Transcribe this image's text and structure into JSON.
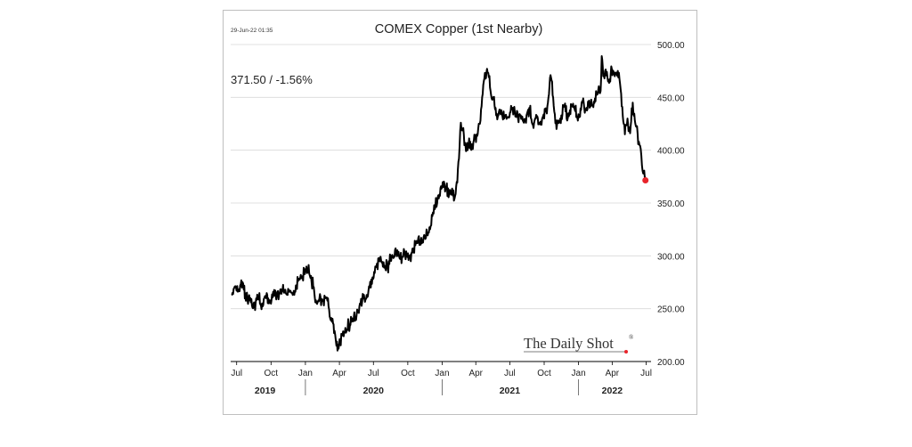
{
  "timestamp": "29-Jun-22 01:35",
  "title": "COMEX Copper (1st Nearby)",
  "last_value_label": "371.50  /  -1.56%",
  "watermark": "The Daily Shot",
  "watermark_mark": "®",
  "colors": {
    "line": "#000000",
    "last_point": "#e8232a",
    "grid": "#d9d9d9",
    "axis": "#000000"
  },
  "chart_data": {
    "type": "line",
    "title": "COMEX Copper (1st Nearby)",
    "xlabel": "",
    "ylabel": "",
    "ylim": [
      200,
      500
    ],
    "yticks": [
      "200.00",
      "250.00",
      "300.00",
      "350.00",
      "400.00",
      "450.00",
      "500.00"
    ],
    "ytick_values": [
      200,
      250,
      300,
      350,
      400,
      450,
      500
    ],
    "grid": true,
    "month_ticks": [
      {
        "label": "Jul",
        "date": "2019-07-01"
      },
      {
        "label": "Oct",
        "date": "2019-10-01"
      },
      {
        "label": "Jan",
        "date": "2020-01-01"
      },
      {
        "label": "Apr",
        "date": "2020-04-01"
      },
      {
        "label": "Jul",
        "date": "2020-07-01"
      },
      {
        "label": "Oct",
        "date": "2020-10-01"
      },
      {
        "label": "Jan",
        "date": "2021-01-01"
      },
      {
        "label": "Apr",
        "date": "2021-04-01"
      },
      {
        "label": "Jul",
        "date": "2021-07-01"
      },
      {
        "label": "Oct",
        "date": "2021-10-01"
      },
      {
        "label": "Jan",
        "date": "2022-01-01"
      },
      {
        "label": "Apr",
        "date": "2022-04-01"
      },
      {
        "label": "Jul",
        "date": "2022-07-01"
      }
    ],
    "year_labels": [
      {
        "label": "2019",
        "date": "2019-09-15"
      },
      {
        "label": "2020",
        "date": "2020-07-01"
      },
      {
        "label": "2021",
        "date": "2021-07-01"
      },
      {
        "label": "2022",
        "date": "2022-04-01"
      }
    ],
    "xlim": [
      "2019-06-15",
      "2022-07-14"
    ],
    "series": [
      {
        "x": [
          "2019-06-17",
          "2019-06-26",
          "2019-07-04",
          "2019-07-12",
          "2019-07-20",
          "2019-07-30",
          "2019-08-08",
          "2019-08-18",
          "2019-08-28",
          "2019-09-07",
          "2019-09-18",
          "2019-09-28",
          "2019-10-08",
          "2019-10-18",
          "2019-10-29",
          "2019-11-08",
          "2019-11-19",
          "2019-11-28",
          "2019-12-08",
          "2019-12-18",
          "2019-12-29",
          "2020-01-08",
          "2020-01-16",
          "2020-01-22",
          "2020-01-29",
          "2020-02-06",
          "2020-02-15",
          "2020-02-24",
          "2020-03-03",
          "2020-03-09",
          "2020-03-15",
          "2020-03-19",
          "2020-03-24",
          "2020-04-03",
          "2020-04-14",
          "2020-04-26",
          "2020-05-08",
          "2020-05-20",
          "2020-06-01",
          "2020-06-13",
          "2020-06-24",
          "2020-07-06",
          "2020-07-17",
          "2020-07-28",
          "2020-08-08",
          "2020-08-19",
          "2020-08-31",
          "2020-09-11",
          "2020-09-22",
          "2020-10-03",
          "2020-10-15",
          "2020-10-26",
          "2020-11-06",
          "2020-11-17",
          "2020-11-28",
          "2020-12-09",
          "2020-12-20",
          "2021-01-01",
          "2021-01-12",
          "2021-01-23",
          "2021-02-03",
          "2021-02-09",
          "2021-02-15",
          "2021-02-20",
          "2021-02-25",
          "2021-03-03",
          "2021-03-10",
          "2021-03-17",
          "2021-03-24",
          "2021-03-31",
          "2021-04-06",
          "2021-04-12",
          "2021-04-18",
          "2021-04-24",
          "2021-05-01",
          "2021-05-06",
          "2021-05-12",
          "2021-05-17",
          "2021-05-24",
          "2021-05-30",
          "2021-06-08",
          "2021-06-16",
          "2021-06-24",
          "2021-07-03",
          "2021-07-13",
          "2021-07-23",
          "2021-08-02",
          "2021-08-12",
          "2021-08-22",
          "2021-09-01",
          "2021-09-11",
          "2021-09-21",
          "2021-10-01",
          "2021-10-11",
          "2021-10-18",
          "2021-10-25",
          "2021-11-03",
          "2021-11-13",
          "2021-11-23",
          "2021-12-03",
          "2021-12-13",
          "2021-12-23",
          "2022-01-02",
          "2022-01-12",
          "2022-01-22",
          "2022-02-01",
          "2022-02-11",
          "2022-02-21",
          "2022-03-01",
          "2022-03-04",
          "2022-03-08",
          "2022-03-13",
          "2022-03-21",
          "2022-03-31",
          "2022-04-08",
          "2022-04-16",
          "2022-04-22",
          "2022-04-28",
          "2022-05-05",
          "2022-05-12",
          "2022-05-19",
          "2022-05-26",
          "2022-06-02",
          "2022-06-08",
          "2022-06-13",
          "2022-06-18",
          "2022-06-23",
          "2022-06-27",
          "2022-06-29"
        ],
        "values": [
          263,
          271,
          266,
          273,
          268,
          258,
          256,
          253,
          259,
          255,
          260,
          258,
          262,
          266,
          264,
          268,
          266,
          263,
          272,
          279,
          284,
          286,
          281,
          270,
          258,
          257,
          259,
          260,
          252,
          239,
          236,
          229,
          215,
          219,
          228,
          235,
          238,
          247,
          257,
          263,
          270,
          290,
          295,
          294,
          289,
          300,
          302,
          297,
          304,
          296,
          307,
          312,
          317,
          316,
          327,
          340,
          355,
          365,
          364,
          360,
          354,
          370,
          392,
          426,
          420,
          407,
          400,
          408,
          401,
          414,
          415,
          425,
          450,
          468,
          477,
          469,
          452,
          450,
          440,
          432,
          438,
          430,
          431,
          436,
          441,
          430,
          432,
          428,
          440,
          424,
          431,
          427,
          430,
          445,
          471,
          450,
          420,
          430,
          442,
          430,
          442,
          437,
          431,
          445,
          440,
          441,
          446,
          453,
          456,
          489,
          470,
          475,
          465,
          477,
          470,
          475,
          463,
          441,
          415,
          430,
          416,
          445,
          425,
          416,
          405,
          395,
          378,
          375,
          371.5
        ]
      }
    ],
    "last_value": 371.5,
    "last_change_pct": -1.56
  }
}
